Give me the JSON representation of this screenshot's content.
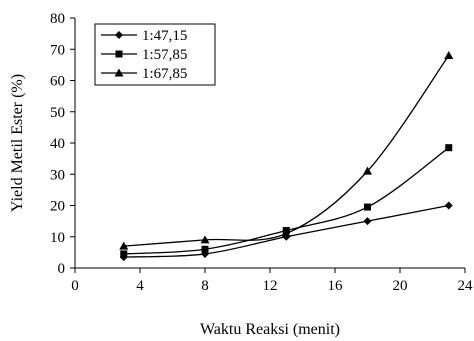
{
  "chart_data": {
    "type": "line",
    "xlabel": "Waktu Reaksi (menit)",
    "ylabel": "Yield Metil Ester (%)",
    "xlim": [
      0,
      24
    ],
    "ylim": [
      0,
      80
    ],
    "xticks": [
      0,
      4,
      8,
      12,
      16,
      20,
      24
    ],
    "yticks": [
      0,
      10,
      20,
      30,
      40,
      50,
      60,
      70,
      80
    ],
    "grid": false,
    "legend_position": "top-left",
    "series": [
      {
        "name": "1:47,15",
        "marker": "diamond",
        "x": [
          3,
          8,
          13,
          18,
          23
        ],
        "y": [
          3.5,
          4.5,
          10,
          15,
          20
        ]
      },
      {
        "name": "1:57,85",
        "marker": "square",
        "x": [
          3,
          8,
          13,
          18,
          23
        ],
        "y": [
          4.5,
          6,
          12,
          19.5,
          38.5
        ]
      },
      {
        "name": "1:67,85",
        "marker": "triangle",
        "x": [
          3,
          8,
          13,
          18,
          23
        ],
        "y": [
          7,
          9,
          11,
          31,
          68
        ]
      }
    ]
  }
}
